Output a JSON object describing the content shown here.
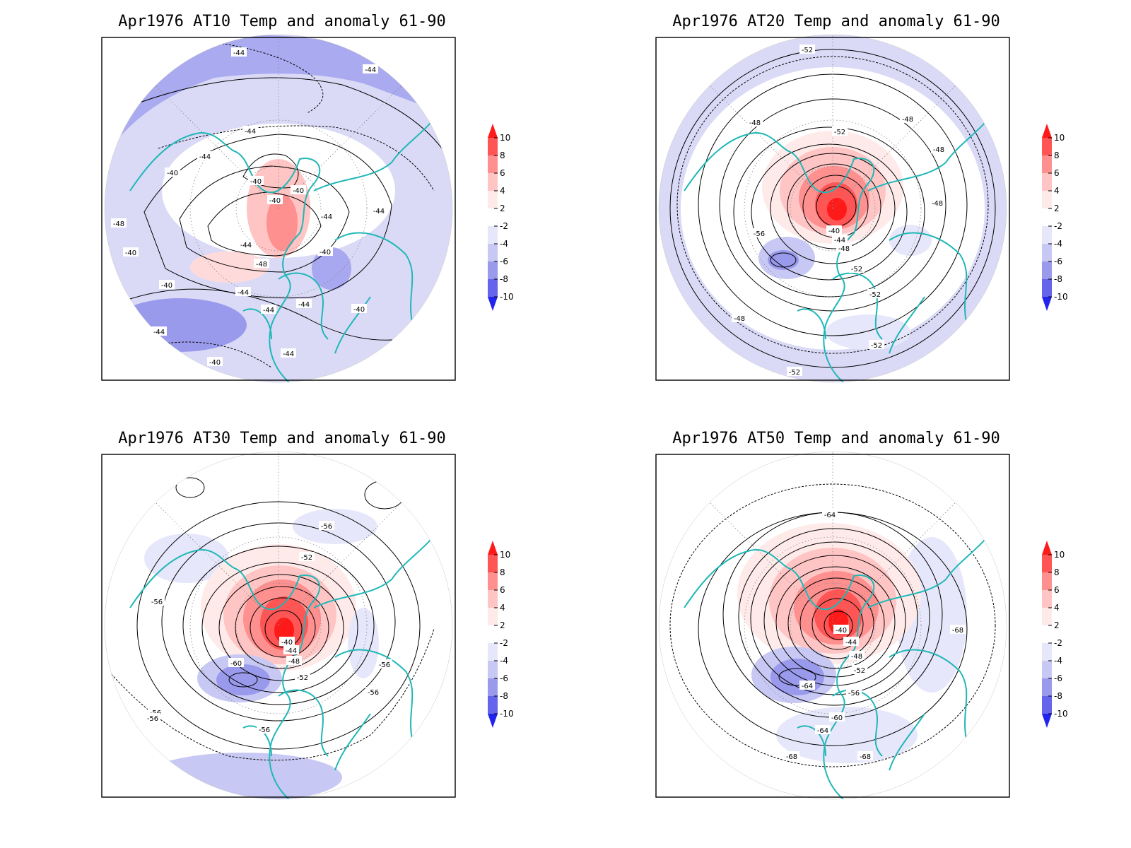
{
  "chart_data": [
    {
      "type": "heatmap",
      "title": "Apr1976 AT10 Temp and anomaly 61-90",
      "contour_labels": [
        "-44",
        "-44",
        "-44",
        "-44",
        "-40",
        "-40",
        "-40",
        "-40",
        "-44",
        "-44",
        "-48",
        "-44",
        "-48",
        "-40",
        "-40",
        "-44",
        "-40",
        "-44",
        "-40",
        "-44",
        "-44",
        "-40",
        "-44"
      ],
      "colorbar": {
        "ticks": [
          "10",
          "8",
          "6",
          "4",
          "2",
          "-2",
          "-4",
          "-6",
          "-8",
          "-10"
        ]
      }
    },
    {
      "type": "heatmap",
      "title": "Apr1976 AT20 Temp and anomaly 61-90",
      "contour_labels": [
        "-52",
        "-48",
        "-48",
        "-52",
        "-48",
        "-48",
        "-56",
        "-40",
        "-44",
        "-48",
        "-52",
        "-52",
        "-48",
        "-52",
        "-52"
      ],
      "colorbar": {
        "ticks": [
          "10",
          "8",
          "6",
          "4",
          "2",
          "-2",
          "-4",
          "-6",
          "-8",
          "-10"
        ]
      }
    },
    {
      "type": "heatmap",
      "title": "Apr1976 AT30 Temp and anomaly 61-90",
      "contour_labels": [
        "-56",
        "-52",
        "-56",
        "-40",
        "-44",
        "-48",
        "-60",
        "-52",
        "-56",
        "-56",
        "-56",
        "-56",
        "-56"
      ],
      "colorbar": {
        "ticks": [
          "10",
          "8",
          "6",
          "4",
          "2",
          "-2",
          "-4",
          "-6",
          "-8",
          "-10"
        ]
      }
    },
    {
      "type": "heatmap",
      "title": "Apr1976 AT50 Temp and anomaly 61-90",
      "contour_labels": [
        "-64",
        "-40",
        "-44",
        "-48",
        "-52",
        "-64",
        "-56",
        "-60",
        "-64",
        "-68",
        "-68",
        "-68"
      ],
      "colorbar": {
        "ticks": [
          "10",
          "8",
          "6",
          "4",
          "2",
          "-2",
          "-4",
          "-6",
          "-8",
          "-10"
        ]
      }
    }
  ],
  "colorbar_colors": [
    "#ff1a1a",
    "#ff5555",
    "#ff9090",
    "#ffc4c4",
    "#ffeaea",
    "#ffffff",
    "#e7e7fb",
    "#c8c8f4",
    "#9a9aed",
    "#6464ec",
    "#2323ee"
  ],
  "line_colors": {
    "coast": "#20b7b7",
    "contour": "#000000"
  }
}
